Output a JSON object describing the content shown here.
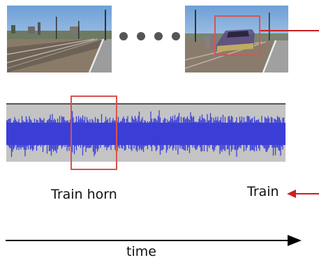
{
  "frames": [
    {
      "name": "frame-start",
      "scene": "empty-station-platform"
    },
    {
      "name": "frame-end",
      "scene": "train-arriving-at-platform"
    }
  ],
  "ellipsis": {
    "dot_count": 4
  },
  "labels": {
    "audio_event": "Train horn",
    "visual_event": "Train",
    "time_axis": "time"
  },
  "colors": {
    "highlight": "#d9534f",
    "arrow": "#cc1f1f",
    "waveform": "#3b3fd6",
    "waveform_bg": "#c4c4c4",
    "axis": "#000000"
  },
  "icons": {
    "ellipsis": "dots-icon",
    "arrow_left": "arrow-left-icon",
    "arrow_right": "arrow-right-icon"
  }
}
